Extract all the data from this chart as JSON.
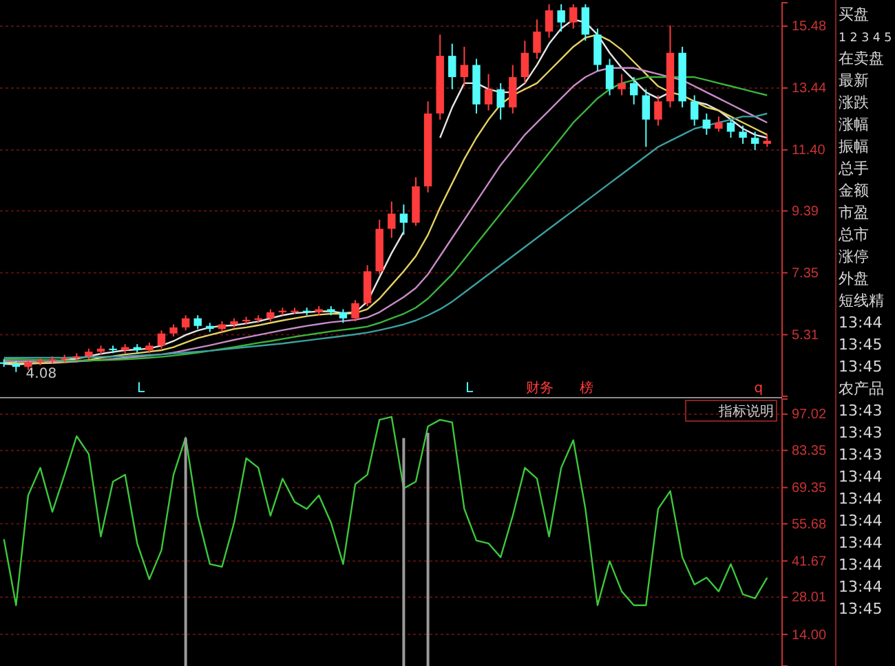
{
  "chart_data": [
    {
      "type": "candlestick",
      "categories": [
        null,
        null,
        null,
        null,
        null,
        null,
        null,
        null,
        null,
        null,
        null,
        null,
        null,
        null,
        null,
        null,
        null,
        null,
        null,
        null,
        null,
        null,
        null,
        null,
        null,
        null,
        null,
        null,
        null,
        null,
        null,
        null,
        null,
        null,
        null,
        null,
        null,
        null,
        null,
        null,
        null,
        null,
        null,
        null,
        null,
        null,
        null,
        null,
        null,
        null,
        null,
        null,
        null,
        null,
        null,
        null,
        null,
        null,
        null,
        null,
        null,
        null,
        null,
        null
      ],
      "ohlc": [
        [
          4.4,
          4.5,
          4.25,
          4.35
        ],
        [
          4.35,
          4.45,
          4.08,
          4.25
        ],
        [
          4.25,
          4.5,
          4.15,
          4.4
        ],
        [
          4.4,
          4.55,
          4.3,
          4.45
        ],
        [
          4.45,
          4.6,
          4.35,
          4.5
        ],
        [
          4.5,
          4.65,
          4.4,
          4.55
        ],
        [
          4.55,
          4.7,
          4.45,
          4.6
        ],
        [
          4.6,
          4.85,
          4.5,
          4.75
        ],
        [
          4.75,
          4.95,
          4.65,
          4.85
        ],
        [
          4.85,
          4.95,
          4.7,
          4.8
        ],
        [
          4.8,
          5.0,
          4.7,
          4.9
        ],
        [
          4.9,
          5.0,
          4.7,
          4.8
        ],
        [
          4.8,
          5.05,
          4.7,
          4.95
        ],
        [
          4.95,
          5.45,
          4.85,
          5.35
        ],
        [
          5.35,
          5.65,
          5.25,
          5.55
        ],
        [
          5.55,
          5.95,
          5.45,
          5.85
        ],
        [
          5.85,
          5.95,
          5.5,
          5.6
        ],
        [
          5.6,
          5.7,
          5.4,
          5.5
        ],
        [
          5.5,
          5.75,
          5.4,
          5.65
        ],
        [
          5.65,
          5.85,
          5.55,
          5.75
        ],
        [
          5.75,
          5.9,
          5.65,
          5.8
        ],
        [
          5.8,
          5.95,
          5.7,
          5.85
        ],
        [
          5.85,
          6.15,
          5.75,
          6.05
        ],
        [
          6.05,
          6.2,
          5.95,
          6.1
        ],
        [
          6.1,
          6.2,
          6.0,
          6.1
        ],
        [
          6.1,
          6.2,
          5.95,
          6.05
        ],
        [
          6.05,
          6.25,
          5.95,
          6.15
        ],
        [
          6.15,
          6.25,
          5.95,
          6.05
        ],
        [
          6.05,
          6.15,
          5.7,
          5.85
        ],
        [
          5.85,
          6.45,
          5.75,
          6.35
        ],
        [
          6.35,
          7.6,
          6.25,
          7.4
        ],
        [
          7.4,
          9.1,
          7.3,
          8.8
        ],
        [
          8.8,
          9.7,
          8.5,
          9.3
        ],
        [
          9.3,
          9.6,
          8.6,
          9.0
        ],
        [
          9.0,
          10.5,
          8.9,
          10.2
        ],
        [
          10.2,
          13.0,
          10.0,
          12.6
        ],
        [
          12.6,
          15.2,
          12.4,
          14.5
        ],
        [
          14.5,
          14.9,
          13.4,
          13.8
        ],
        [
          13.8,
          14.8,
          13.5,
          14.2
        ],
        [
          14.2,
          14.4,
          12.6,
          12.9
        ],
        [
          12.9,
          13.9,
          12.7,
          13.4
        ],
        [
          13.4,
          13.6,
          12.4,
          12.8
        ],
        [
          12.8,
          14.2,
          12.6,
          13.8
        ],
        [
          13.8,
          15.0,
          13.6,
          14.6
        ],
        [
          14.6,
          15.7,
          14.4,
          15.3
        ],
        [
          15.3,
          16.2,
          15.1,
          16.0
        ],
        [
          16.0,
          16.2,
          15.3,
          15.6
        ],
        [
          15.6,
          16.2,
          15.4,
          16.1
        ],
        [
          16.1,
          16.2,
          15.0,
          15.2
        ],
        [
          15.2,
          15.4,
          14.0,
          14.2
        ],
        [
          14.2,
          14.4,
          13.2,
          13.4
        ],
        [
          13.4,
          13.9,
          13.2,
          13.6
        ],
        [
          13.6,
          13.8,
          12.9,
          13.2
        ],
        [
          13.2,
          13.4,
          11.5,
          12.4
        ],
        [
          12.4,
          13.2,
          12.2,
          13.0
        ],
        [
          13.0,
          15.5,
          12.8,
          14.6
        ],
        [
          14.6,
          14.8,
          12.8,
          13.0
        ],
        [
          13.0,
          13.2,
          12.2,
          12.4
        ],
        [
          12.4,
          12.6,
          11.9,
          12.1
        ],
        [
          12.1,
          12.5,
          12.0,
          12.3
        ],
        [
          12.3,
          12.4,
          11.8,
          12.0
        ],
        [
          12.0,
          12.2,
          11.6,
          11.8
        ],
        [
          11.8,
          12.0,
          11.4,
          11.6
        ],
        [
          11.6,
          11.9,
          11.5,
          11.7
        ]
      ],
      "colors": [
        "#54fcfc",
        "#54fcfc",
        "#ff3c3c",
        "#ff3c3c",
        "#ff3c3c",
        "#ff3c3c",
        "#ff3c3c",
        "#ff3c3c",
        "#ff3c3c",
        "#54fcfc",
        "#ff3c3c",
        "#54fcfc",
        "#ff3c3c",
        "#ff3c3c",
        "#ff3c3c",
        "#ff3c3c",
        "#54fcfc",
        "#54fcfc",
        "#ff3c3c",
        "#ff3c3c",
        "#ff3c3c",
        "#ff3c3c",
        "#ff3c3c",
        "#ff3c3c",
        "#ff3c3c",
        "#54fcfc",
        "#ff3c3c",
        "#54fcfc",
        "#54fcfc",
        "#ff3c3c",
        "#ff3c3c",
        "#ff3c3c",
        "#ff3c3c",
        "#54fcfc",
        "#ff3c3c",
        "#ff3c3c",
        "#ff3c3c",
        "#54fcfc",
        "#ff3c3c",
        "#54fcfc",
        "#ff3c3c",
        "#54fcfc",
        "#ff3c3c",
        "#ff3c3c",
        "#ff3c3c",
        "#ff3c3c",
        "#54fcfc",
        "#ff3c3c",
        "#54fcfc",
        "#54fcfc",
        "#54fcfc",
        "#ff3c3c",
        "#54fcfc",
        "#54fcfc",
        "#ff3c3c",
        "#ff3c3c",
        "#54fcfc",
        "#54fcfc",
        "#54fcfc",
        "#ff3c3c",
        "#54fcfc",
        "#54fcfc",
        "#54fcfc",
        "#ff3c3c"
      ],
      "series": [
        {
          "type": "line",
          "color": "#e6e6e6",
          "values": [
            4.35,
            4.33,
            4.35,
            4.38,
            4.42,
            4.47,
            4.52,
            4.6,
            4.68,
            4.74,
            4.8,
            4.82,
            4.86,
            4.95,
            5.1,
            5.3,
            5.45,
            5.55,
            5.6,
            5.62,
            5.68,
            5.75,
            5.85,
            5.95,
            6.02,
            6.05,
            6.08,
            6.08,
            6.02,
            6.05,
            6.4,
            7.2,
            8.0,
            8.7,
            null,
            null,
            11.8,
            12.8,
            13.6,
            13.6,
            13.4,
            13.3,
            13.3,
            13.6,
            14.2,
            14.9,
            15.4,
            15.7,
            15.6,
            15.2,
            14.6,
            14.1,
            13.7,
            13.3,
            13.1,
            13.3,
            null,
            13.0,
            12.9,
            12.7,
            12.4,
            12.1,
            11.9,
            11.8
          ]
        },
        {
          "type": "line",
          "color": "#e6d264",
          "values": [
            4.4,
            4.38,
            4.37,
            4.37,
            4.38,
            4.4,
            4.43,
            4.48,
            4.55,
            4.6,
            4.66,
            4.7,
            4.75,
            4.8,
            4.9,
            5.05,
            5.2,
            5.3,
            5.4,
            5.5,
            5.55,
            5.62,
            5.7,
            5.78,
            5.85,
            5.92,
            5.97,
            6.0,
            6.0,
            6.02,
            6.15,
            6.5,
            6.95,
            7.4,
            7.9,
            8.6,
            9.5,
            10.3,
            11.1,
            11.8,
            12.4,
            12.9,
            13.2,
            13.4,
            13.6,
            14.0,
            14.4,
            14.8,
            15.1,
            15.2,
            15.0,
            14.7,
            14.3,
            13.9,
            13.5,
            13.3,
            13.2,
            13.0,
            12.8,
            12.7,
            12.5,
            12.3,
            12.1,
            11.9
          ]
        },
        {
          "type": "line",
          "color": "#c88cc8",
          "values": [
            4.45,
            4.44,
            4.43,
            4.42,
            4.42,
            4.42,
            4.43,
            4.45,
            4.48,
            4.51,
            4.55,
            4.58,
            4.62,
            4.66,
            4.72,
            4.8,
            4.88,
            4.96,
            5.05,
            5.14,
            5.22,
            5.3,
            5.38,
            5.46,
            5.53,
            5.6,
            5.66,
            5.72,
            5.76,
            5.8,
            5.88,
            6.05,
            6.3,
            6.55,
            6.85,
            7.3,
            7.9,
            8.5,
            9.1,
            9.7,
            10.3,
            10.9,
            11.4,
            11.9,
            12.3,
            12.7,
            13.1,
            13.5,
            13.8,
            14.0,
            14.1,
            14.1,
            14.1,
            14.0,
            13.9,
            13.8,
            13.7,
            13.5,
            13.3,
            13.1,
            12.9,
            12.7,
            12.5,
            12.3
          ]
        },
        {
          "type": "line",
          "color": "#3cb43c",
          "values": [
            4.5,
            4.5,
            4.49,
            4.48,
            4.47,
            4.46,
            4.46,
            4.46,
            4.47,
            4.48,
            4.5,
            4.52,
            4.55,
            4.58,
            4.62,
            4.67,
            4.72,
            4.78,
            4.84,
            4.9,
            4.97,
            5.04,
            5.1,
            5.17,
            5.24,
            5.3,
            5.36,
            5.42,
            5.47,
            5.52,
            5.58,
            5.7,
            5.85,
            6.0,
            6.2,
            6.5,
            6.9,
            7.3,
            7.8,
            8.3,
            8.8,
            9.3,
            9.8,
            10.3,
            10.8,
            11.3,
            11.8,
            12.3,
            12.7,
            13.1,
            13.4,
            13.6,
            13.7,
            13.8,
            13.8,
            13.8,
            13.8,
            13.8,
            13.7,
            13.6,
            13.5,
            13.4,
            13.3,
            13.2
          ]
        },
        {
          "type": "line",
          "color": "#3ca0a0",
          "values": [
            4.55,
            4.55,
            4.55,
            4.55,
            4.55,
            4.55,
            4.56,
            4.57,
            4.58,
            4.59,
            4.6,
            4.62,
            4.64,
            4.66,
            4.69,
            4.72,
            4.75,
            4.78,
            4.82,
            4.86,
            4.9,
            4.94,
            4.98,
            5.02,
            5.07,
            5.12,
            5.17,
            5.22,
            5.27,
            5.32,
            5.38,
            5.46,
            5.55,
            5.65,
            5.78,
            5.95,
            6.15,
            6.4,
            6.7,
            7.0,
            7.3,
            7.6,
            7.9,
            8.2,
            8.5,
            8.8,
            9.1,
            9.4,
            9.7,
            10.0,
            10.3,
            10.6,
            10.9,
            11.2,
            11.5,
            11.7,
            11.9,
            12.1,
            12.2,
            12.3,
            12.4,
            12.5,
            12.5,
            12.6
          ]
        }
      ],
      "ylim": [
        3.28,
        16.25
      ],
      "yticks": [
        5.31,
        7.35,
        9.39,
        {
          "value": 11.4,
          "label": "11.40"
        },
        13.44,
        15.48
      ],
      "grid": "y",
      "annotations": [
        {
          "text": "4.08",
          "y": 4.08
        },
        "L",
        "L",
        "财务",
        "榜",
        "q"
      ]
    },
    {
      "type": "line",
      "categories": [
        null,
        null,
        null,
        null,
        null,
        null,
        null,
        null,
        null,
        null,
        null,
        null,
        null,
        null,
        null,
        null,
        null,
        null,
        null,
        null,
        null,
        null,
        null,
        null,
        null,
        null,
        null,
        null,
        null,
        null,
        null,
        null,
        null,
        null,
        null,
        null,
        null,
        null,
        null,
        null,
        null,
        null,
        null,
        null,
        null,
        null,
        null,
        null,
        null,
        null,
        null,
        null,
        null,
        null,
        null,
        null,
        null,
        null,
        null,
        null,
        null,
        null,
        null,
        null
      ],
      "series": [
        {
          "type": "line",
          "color": "#3cc83c",
          "values": [
            49.9,
            25.0,
            66.4,
            76.8,
            60.2,
            74.2,
            88.7,
            82.0,
            50.9,
            71.6,
            74.2,
            48.3,
            34.8,
            45.7,
            74.2,
            88.2,
            58.7,
            40.5,
            39.5,
            56.1,
            80.4,
            76.8,
            58.7,
            72.7,
            63.9,
            61.3,
            66.4,
            56.1,
            40.5,
            70.6,
            74.2,
            94.9,
            96.0,
            69.0,
            71.6,
            92.4,
            94.9,
            93.9,
            61.3,
            49.4,
            48.3,
            43.1,
            58.7,
            76.8,
            72.7,
            50.9,
            76.8,
            87.2,
            61.3,
            25.0,
            41.6,
            30.2,
            25.0,
            25.0,
            61.3,
            68.0,
            43.1,
            32.8,
            35.4,
            30.2,
            40.5,
            29.1,
            27.6,
            35.4
          ]
        },
        {
          "type": "bar",
          "color": "#9a9a9a",
          "values": [
            null,
            null,
            null,
            null,
            null,
            null,
            null,
            null,
            null,
            null,
            null,
            null,
            null,
            null,
            null,
            88,
            null,
            null,
            null,
            null,
            null,
            null,
            null,
            null,
            null,
            null,
            null,
            null,
            null,
            null,
            null,
            null,
            null,
            88,
            null,
            90,
            null,
            null,
            null,
            null,
            null,
            null,
            null,
            null,
            null,
            null,
            null,
            null,
            null,
            null,
            null,
            null,
            null,
            null,
            null,
            null,
            null,
            null,
            null,
            null,
            null,
            null,
            null,
            null
          ]
        }
      ],
      "ylim": [
        2.1,
        102.7
      ],
      "yticks": [
        {
          "value": 14,
          "label": "14.00"
        },
        28.01,
        41.67,
        55.68,
        69.35,
        83.35,
        97.02
      ],
      "grid": "y",
      "annotations": [
        "指标说明"
      ]
    },
    {
      "type": "other",
      "annotations": [
        "买盘",
        "1 2 3 4 5",
        "在卖盘",
        "最新",
        "涨跌",
        "涨幅",
        "振幅",
        "总手",
        "金额",
        "市盈",
        "总市",
        "涨停",
        "外盘",
        "短线精",
        "13:44",
        "13:45",
        "13:45",
        "农产品",
        "13:43",
        "13:43",
        "13:43",
        "13:44",
        "13:44",
        "13:44",
        "13:44",
        "13:44",
        "13:44",
        "13:45"
      ]
    }
  ]
}
